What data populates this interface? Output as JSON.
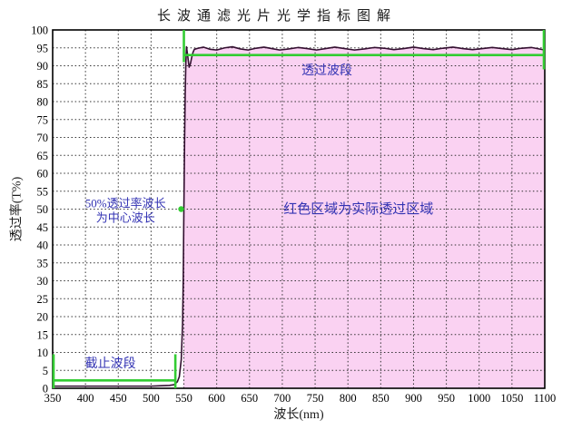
{
  "chart_data": {
    "type": "area",
    "title": "长波通滤光片光学指标图解",
    "xlabel": "波长(nm)",
    "ylabel": "透过率(T%)",
    "xlim": [
      350,
      1100
    ],
    "ylim": [
      0,
      100
    ],
    "grid": "dotted, both axes, on",
    "legend": "none",
    "x_ticks": [
      350,
      400,
      450,
      500,
      550,
      600,
      650,
      700,
      750,
      800,
      850,
      900,
      950,
      1000,
      1050,
      1100
    ],
    "y_ticks": [
      0,
      5,
      10,
      15,
      20,
      25,
      30,
      35,
      40,
      45,
      50,
      55,
      60,
      65,
      70,
      75,
      80,
      85,
      90,
      95,
      100
    ],
    "series": [
      {
        "name": "transmittance-curve",
        "color": "#330f30",
        "points": [
          [
            350,
            0.6
          ],
          [
            380,
            0.6
          ],
          [
            410,
            0.6
          ],
          [
            440,
            0.6
          ],
          [
            470,
            0.6
          ],
          [
            500,
            0.6
          ],
          [
            515,
            0.7
          ],
          [
            528,
            0.8
          ],
          [
            535,
            1.0
          ],
          [
            540,
            1.8
          ],
          [
            543,
            3.2
          ],
          [
            546,
            8
          ],
          [
            548,
            18
          ],
          [
            549,
            30
          ],
          [
            550,
            50
          ],
          [
            551,
            68
          ],
          [
            552,
            82
          ],
          [
            553,
            91
          ],
          [
            554,
            95.3
          ],
          [
            556,
            92.5
          ],
          [
            558,
            89.6
          ],
          [
            560,
            90.6
          ],
          [
            562,
            92.4
          ],
          [
            564,
            93.8
          ],
          [
            566,
            94.6
          ],
          [
            572,
            94.9
          ],
          [
            580,
            95.2
          ],
          [
            590,
            94.6
          ],
          [
            600,
            94.4
          ],
          [
            612,
            95.0
          ],
          [
            624,
            95.3
          ],
          [
            636,
            94.7
          ],
          [
            648,
            94.4
          ],
          [
            660,
            94.9
          ],
          [
            672,
            95.2
          ],
          [
            684,
            94.8
          ],
          [
            696,
            94.4
          ],
          [
            710,
            94.7
          ],
          [
            724,
            95.1
          ],
          [
            738,
            94.8
          ],
          [
            752,
            94.4
          ],
          [
            766,
            94.8
          ],
          [
            780,
            95.2
          ],
          [
            795,
            94.8
          ],
          [
            810,
            94.4
          ],
          [
            825,
            94.7
          ],
          [
            840,
            95.1
          ],
          [
            855,
            94.9
          ],
          [
            870,
            94.5
          ],
          [
            885,
            94.8
          ],
          [
            900,
            95.2
          ],
          [
            915,
            94.8
          ],
          [
            930,
            94.5
          ],
          [
            945,
            94.9
          ],
          [
            960,
            95.2
          ],
          [
            975,
            94.8
          ],
          [
            990,
            94.5
          ],
          [
            1005,
            94.8
          ],
          [
            1020,
            95.1
          ],
          [
            1035,
            94.8
          ],
          [
            1050,
            94.5
          ],
          [
            1065,
            94.9
          ],
          [
            1080,
            95.1
          ],
          [
            1100,
            94.4
          ]
        ]
      }
    ],
    "fill_region": {
      "description": "area under transmittance curve, actual pass region",
      "from_nm": 549,
      "to_nm": 1100,
      "color": "#fad2f2"
    },
    "spec_lines": {
      "color": "#33cc33",
      "passband_bracket": {
        "label": "透过波段",
        "line": {
          "t": 93,
          "nm_from": 550,
          "nm_to": 1100
        },
        "left_tick": {
          "nm": 550,
          "t_from": 100,
          "t_to": 91
        },
        "right_tick": {
          "nm": 1100,
          "t_from": 100,
          "t_to": 89
        }
      },
      "cutoff_bracket": {
        "label": "截止波段",
        "line": {
          "t": 2.2,
          "nm_from": 350,
          "nm_to": 537
        },
        "left_tick": {
          "nm": 350,
          "t_from": 0,
          "t_to": 9.5
        },
        "right_tick": {
          "nm": 537,
          "t_from": 0,
          "t_to": 9.5
        }
      },
      "center_point": {
        "nm": 550,
        "t": 50
      }
    },
    "annotations": [
      {
        "name": "passband-label",
        "text": "透过波段",
        "nm": 768,
        "t": 88.8,
        "color": "#3333b3",
        "size": 14
      },
      {
        "name": "fill-region-label",
        "text": "红色区域为实际透过区域",
        "nm": 816,
        "t": 50.1,
        "color": "#3333b3",
        "size": 15
      },
      {
        "name": "center-wavelength-label",
        "lines": [
          "50%透过率波长",
          "为中心波长"
        ],
        "nm": 461,
        "t": 49.8,
        "color": "#3333b3",
        "size": 13
      },
      {
        "name": "cutoff-label",
        "text": "截止波段",
        "nm": 438,
        "t": 7.1,
        "color": "#3333b3",
        "size": 14
      }
    ],
    "colors": {
      "background": "#ffffff",
      "grid": "#333333",
      "frame": "#000000",
      "curve": "#330f30",
      "fill": "#fad2f2",
      "spec_green": "#33cc33",
      "annotation_blue": "#3333b3"
    }
  }
}
